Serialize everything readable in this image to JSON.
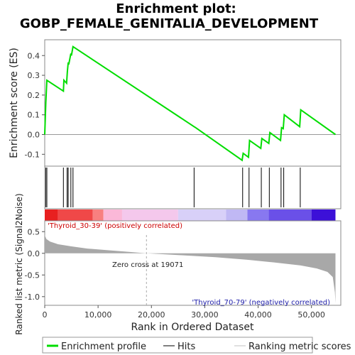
{
  "chart_data": {
    "type": "line",
    "title_line1": "Enrichment plot:",
    "title_line2": "GOBP_FEMALE_GENITALIA_DEVELOPMENT",
    "es_panel": {
      "ylabel": "Enrichment score (ES)",
      "ylim": [
        -0.16,
        0.48
      ],
      "yticks": [
        -0.1,
        0.0,
        0.1,
        0.2,
        0.3,
        0.4
      ],
      "ytick_labels": [
        "-0.1",
        "0.0",
        "0.1",
        "0.2",
        "0.3",
        "0.4"
      ],
      "series": [
        {
          "name": "Enrichment profile",
          "color": "#00dd00",
          "x": [
            0,
            200,
            400,
            3500,
            3600,
            4100,
            4250,
            4400,
            4500,
            4900,
            5000,
            5300,
            28000,
            28300,
            37000,
            37200,
            38200,
            38400,
            40500,
            40700,
            42000,
            42200,
            44200,
            44400,
            44700,
            44900,
            47800,
            48000,
            54500
          ],
          "y": [
            0.0,
            0.16,
            0.275,
            0.22,
            0.275,
            0.26,
            0.32,
            0.365,
            0.355,
            0.41,
            0.4,
            0.445,
            0.04,
            0.035,
            -0.13,
            -0.095,
            -0.115,
            -0.03,
            -0.07,
            -0.02,
            -0.045,
            0.01,
            -0.03,
            0.035,
            0.03,
            0.1,
            0.04,
            0.125,
            0.0
          ]
        }
      ]
    },
    "hits": [
      200,
      400,
      3500,
      4200,
      4400,
      4900,
      5300,
      28000,
      37100,
      38300,
      40600,
      42100,
      44300,
      44800,
      47900
    ],
    "metric_panel": {
      "ylabel": "Ranked list metric (Signal2Noise)",
      "ylim": [
        -1.2,
        0.75
      ],
      "yticks": [
        -1.0,
        -0.5,
        0.0,
        0.5
      ],
      "ytick_labels": [
        "-1.0",
        "-0.5",
        "0.0",
        "0.5"
      ],
      "zero_cross_label": "Zero cross at 19071",
      "zero_cross": 19071,
      "pos_label": "'Thyroid_30-39' (positively correlated)",
      "neg_label": "'Thyroid_70-79' (negatively correlated)",
      "metric_curve_x": [
        0,
        300,
        1000,
        2500,
        5000,
        8000,
        12000,
        16000,
        19071,
        25000,
        32000,
        38000,
        43000,
        48000,
        51000,
        53000,
        54000,
        54400,
        54500
      ],
      "metric_curve_y": [
        0.42,
        0.33,
        0.27,
        0.21,
        0.16,
        0.11,
        0.07,
        0.03,
        0.0,
        -0.04,
        -0.09,
        -0.15,
        -0.21,
        -0.28,
        -0.35,
        -0.43,
        -0.55,
        -0.9,
        -1.15
      ]
    },
    "xlabel": "Rank in Ordered Dataset",
    "xlim": [
      0,
      55500
    ],
    "xticks": [
      0,
      10000,
      20000,
      30000,
      40000,
      50000
    ],
    "xtick_labels": [
      "0",
      "10,000",
      "20,000",
      "30,000",
      "40,000",
      "50,000"
    ],
    "dataset_size": 54500,
    "heatmap_colors": [
      "#e82020",
      "#f04848",
      "#f88080",
      "#fbb8d8",
      "#f4c8ec",
      "#d8d0f8",
      "#c0b8f4",
      "#8878f0",
      "#6a50e8",
      "#3c10d8"
    ],
    "heatmap_breaks": [
      0,
      2500,
      9000,
      11000,
      14500,
      25000,
      34000,
      38000,
      42000,
      50000,
      54500
    ],
    "legend": [
      {
        "label": "Enrichment profile",
        "color": "#00dd00"
      },
      {
        "label": "Hits",
        "color": "#000000"
      },
      {
        "label": "Ranking metric scores",
        "color": "#c0c0c0"
      }
    ]
  }
}
